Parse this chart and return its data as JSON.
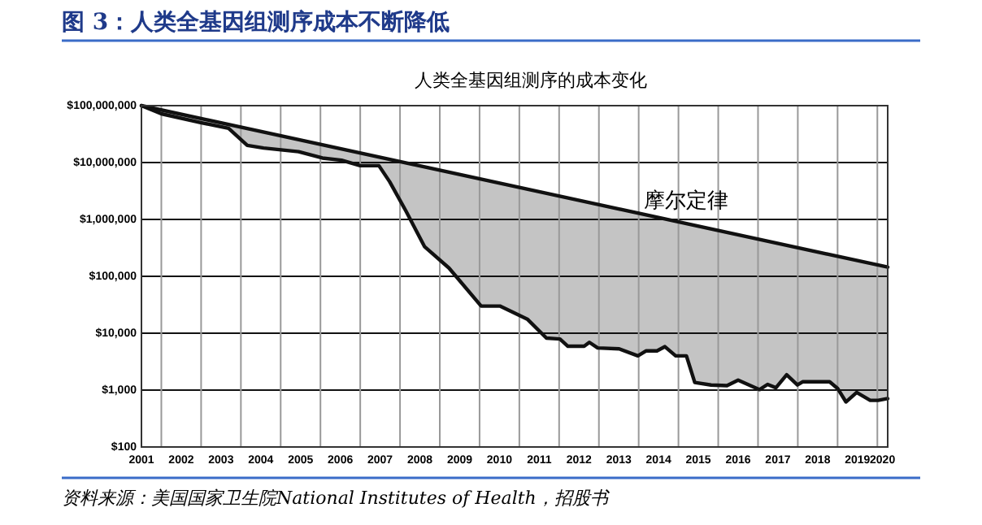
{
  "chart_data": {
    "type": "line",
    "title": "图 3：人类全基因组测序成本不断降低",
    "subtitle": "人类全基因组测序的成本变化",
    "annotations": [
      "资料来源：美国国家卫生院National Institutes of Health，招股书"
    ],
    "log": "y",
    "grid": true,
    "xlim": [
      2001.5,
      2020.26
    ],
    "xticks": [
      {
        "value": 2001.5,
        "label": "2001"
      },
      {
        "value": 2002.5,
        "label": "2002"
      },
      {
        "value": 2003.5,
        "label": "2003"
      },
      {
        "value": 2004.5,
        "label": "2004"
      },
      {
        "value": 2005.5,
        "label": "2005"
      },
      {
        "value": 2006.5,
        "label": "2006"
      },
      {
        "value": 2007.5,
        "label": "2007"
      },
      {
        "value": 2008.5,
        "label": "2008"
      },
      {
        "value": 2009.5,
        "label": "2009"
      },
      {
        "value": 2010.5,
        "label": "2010"
      },
      {
        "value": 2011.5,
        "label": "2011"
      },
      {
        "value": 2012.5,
        "label": "2012"
      },
      {
        "value": 2013.5,
        "label": "2013"
      },
      {
        "value": 2014.5,
        "label": "2014"
      },
      {
        "value": 2015.5,
        "label": "2015"
      },
      {
        "value": 2016.5,
        "label": "2016"
      },
      {
        "value": 2017.5,
        "label": "2017"
      },
      {
        "value": 2018.5,
        "label": "2018"
      },
      {
        "value": 2019.5,
        "label": "2019"
      },
      {
        "value": 2020.13,
        "label": "2020"
      },
      {
        "value": 2002,
        "label": null
      },
      {
        "value": 2003,
        "label": null
      },
      {
        "value": 2004,
        "label": null
      },
      {
        "value": 2005,
        "label": null
      },
      {
        "value": 2006,
        "label": null
      },
      {
        "value": 2007,
        "label": null
      },
      {
        "value": 2008,
        "label": null
      },
      {
        "value": 2009,
        "label": null
      },
      {
        "value": 2010,
        "label": null
      },
      {
        "value": 2011,
        "label": null
      },
      {
        "value": 2012,
        "label": null
      },
      {
        "value": 2013,
        "label": null
      },
      {
        "value": 2014,
        "label": null
      },
      {
        "value": 2015,
        "label": null
      },
      {
        "value": 2016,
        "label": null
      },
      {
        "value": 2017,
        "label": null
      },
      {
        "value": 2018,
        "label": null
      },
      {
        "value": 2019,
        "label": null
      },
      {
        "value": 2020,
        "label": null
      }
    ],
    "ylim": [
      100,
      100000000
    ],
    "yticks": [
      {
        "value": 100,
        "label": "$100"
      },
      {
        "value": 1000,
        "label": "$1,000"
      },
      {
        "value": 10000,
        "label": "$10,000"
      },
      {
        "value": 100000,
        "label": "$100,000"
      },
      {
        "value": 1000000,
        "label": "$1,000,000"
      },
      {
        "value": 10000000,
        "label": "$10,000,000"
      },
      {
        "value": 100000000,
        "label": "$100,000,000"
      }
    ],
    "series": [
      {
        "color": "#111111",
        "x": [
          2001.5,
          2002.0,
          2003.01,
          2003.69,
          2004.16,
          2004.57,
          2005.45,
          2006.05,
          2006.53,
          2007.0,
          2007.47,
          2007.74,
          2008.15,
          2008.62,
          2009.23,
          2010.04,
          2010.51,
          2011.2,
          2011.68,
          2012.02,
          2012.22,
          2012.63,
          2012.76,
          2012.97,
          2013.51,
          2013.98,
          2014.19,
          2014.46,
          2014.66,
          2014.93,
          2015.2,
          2015.41,
          2015.82,
          2016.22,
          2016.5,
          2017.04,
          2017.24,
          2017.45,
          2017.72,
          2017.99,
          2018.12,
          2018.8,
          2019.0,
          2019.21,
          2019.48,
          2019.82,
          2020.02,
          2020.26
        ],
        "values": [
          100000000,
          72000000,
          50000000,
          40000000,
          20000000,
          18000000,
          15500000,
          12000000,
          11000000,
          8800000,
          8800000,
          4600000,
          1400000,
          330000,
          140000,
          30000,
          30000,
          17700,
          8200,
          7900,
          5900,
          5900,
          6900,
          5500,
          5300,
          4000,
          4900,
          4900,
          5800,
          4000,
          4000,
          1360,
          1230,
          1200,
          1500,
          1020,
          1260,
          1100,
          1860,
          1230,
          1400,
          1400,
          1070,
          620,
          910,
          660,
          660,
          710
        ],
        "lower": [
          100000000,
          72000000,
          50000000,
          40000000,
          20000000,
          18000000,
          15500000,
          12000000,
          11000000,
          8800000,
          8800000,
          4600000,
          1400000,
          330000,
          140000,
          30000,
          30000,
          17700,
          8200,
          7900,
          5900,
          5900,
          6900,
          5500,
          5300,
          4000,
          4900,
          4900,
          5800,
          4000,
          4000,
          1360,
          1230,
          1200,
          1500,
          1020,
          1260,
          1100,
          1860,
          1230,
          1400,
          1400,
          1070,
          620,
          910,
          660,
          660,
          710
        ],
        "upper": [
          100000000,
          85000000,
          60000000,
          47000000,
          40000000,
          34600000,
          25500000,
          20600000,
          17500000,
          14800000,
          12600000,
          11400000,
          9900000,
          8400000,
          6800000,
          5100000,
          4300000,
          3400000,
          2900000,
          2600000,
          2400000,
          2100000,
          1980000,
          1840000,
          1520000,
          1290000,
          1200000,
          1090000,
          1020000,
          929000,
          845000,
          785000,
          681000,
          593000,
          537000,
          445000,
          415000,
          385000,
          351000,
          319000,
          305000,
          240000,
          224000,
          208000,
          190000,
          169000,
          157000,
          145000
        ]
      },
      {
        "name": "摩尔定律",
        "color": "#111111",
        "x": [
          2001.5,
          2020.26
        ],
        "values": [
          100000000,
          145000
        ]
      }
    ]
  }
}
